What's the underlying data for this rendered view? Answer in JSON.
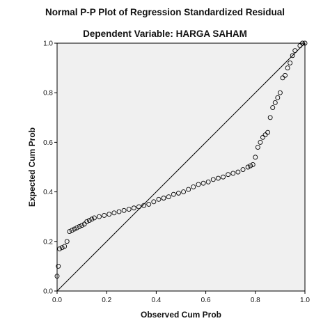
{
  "chart_data": {
    "type": "scatter",
    "title": "Normal P-P Plot of Regression Standardized Residual",
    "subtitle": "Dependent Variable: HARGA SAHAM",
    "xlabel": "Observed Cum Prob",
    "ylabel": "Expected Cum Prob",
    "xlim": [
      0.0,
      1.0
    ],
    "ylim": [
      0.0,
      1.0
    ],
    "xticks": [
      "0.0",
      "0.2",
      "0.4",
      "0.6",
      "0.8",
      "1.0"
    ],
    "yticks": [
      "0.0",
      "0.2",
      "0.4",
      "0.6",
      "0.8",
      "1.0"
    ],
    "grid": false,
    "reference_line": {
      "from": [
        0,
        0
      ],
      "to": [
        1,
        1
      ]
    },
    "series": [
      {
        "points": [
          [
            0.0,
            0.06
          ],
          [
            0.005,
            0.1
          ],
          [
            0.01,
            0.17
          ],
          [
            0.02,
            0.175
          ],
          [
            0.03,
            0.18
          ],
          [
            0.04,
            0.2
          ],
          [
            0.05,
            0.24
          ],
          [
            0.06,
            0.245
          ],
          [
            0.07,
            0.25
          ],
          [
            0.08,
            0.255
          ],
          [
            0.09,
            0.26
          ],
          [
            0.1,
            0.265
          ],
          [
            0.11,
            0.27
          ],
          [
            0.12,
            0.28
          ],
          [
            0.13,
            0.285
          ],
          [
            0.14,
            0.29
          ],
          [
            0.15,
            0.295
          ],
          [
            0.17,
            0.3
          ],
          [
            0.19,
            0.305
          ],
          [
            0.21,
            0.31
          ],
          [
            0.23,
            0.315
          ],
          [
            0.25,
            0.32
          ],
          [
            0.27,
            0.325
          ],
          [
            0.29,
            0.33
          ],
          [
            0.31,
            0.335
          ],
          [
            0.33,
            0.34
          ],
          [
            0.35,
            0.345
          ],
          [
            0.37,
            0.35
          ],
          [
            0.39,
            0.36
          ],
          [
            0.41,
            0.37
          ],
          [
            0.43,
            0.375
          ],
          [
            0.45,
            0.38
          ],
          [
            0.47,
            0.39
          ],
          [
            0.49,
            0.395
          ],
          [
            0.51,
            0.4
          ],
          [
            0.53,
            0.41
          ],
          [
            0.55,
            0.42
          ],
          [
            0.57,
            0.43
          ],
          [
            0.59,
            0.435
          ],
          [
            0.61,
            0.44
          ],
          [
            0.63,
            0.45
          ],
          [
            0.65,
            0.455
          ],
          [
            0.67,
            0.46
          ],
          [
            0.69,
            0.47
          ],
          [
            0.71,
            0.475
          ],
          [
            0.73,
            0.48
          ],
          [
            0.75,
            0.49
          ],
          [
            0.77,
            0.5
          ],
          [
            0.78,
            0.505
          ],
          [
            0.79,
            0.51
          ],
          [
            0.8,
            0.54
          ],
          [
            0.81,
            0.58
          ],
          [
            0.82,
            0.6
          ],
          [
            0.83,
            0.62
          ],
          [
            0.84,
            0.63
          ],
          [
            0.85,
            0.64
          ],
          [
            0.86,
            0.7
          ],
          [
            0.87,
            0.74
          ],
          [
            0.88,
            0.76
          ],
          [
            0.89,
            0.78
          ],
          [
            0.9,
            0.8
          ],
          [
            0.91,
            0.86
          ],
          [
            0.92,
            0.87
          ],
          [
            0.93,
            0.9
          ],
          [
            0.94,
            0.92
          ],
          [
            0.95,
            0.95
          ],
          [
            0.96,
            0.97
          ],
          [
            0.98,
            0.99
          ],
          [
            0.99,
            1.0
          ],
          [
            1.0,
            1.0
          ]
        ]
      }
    ]
  }
}
